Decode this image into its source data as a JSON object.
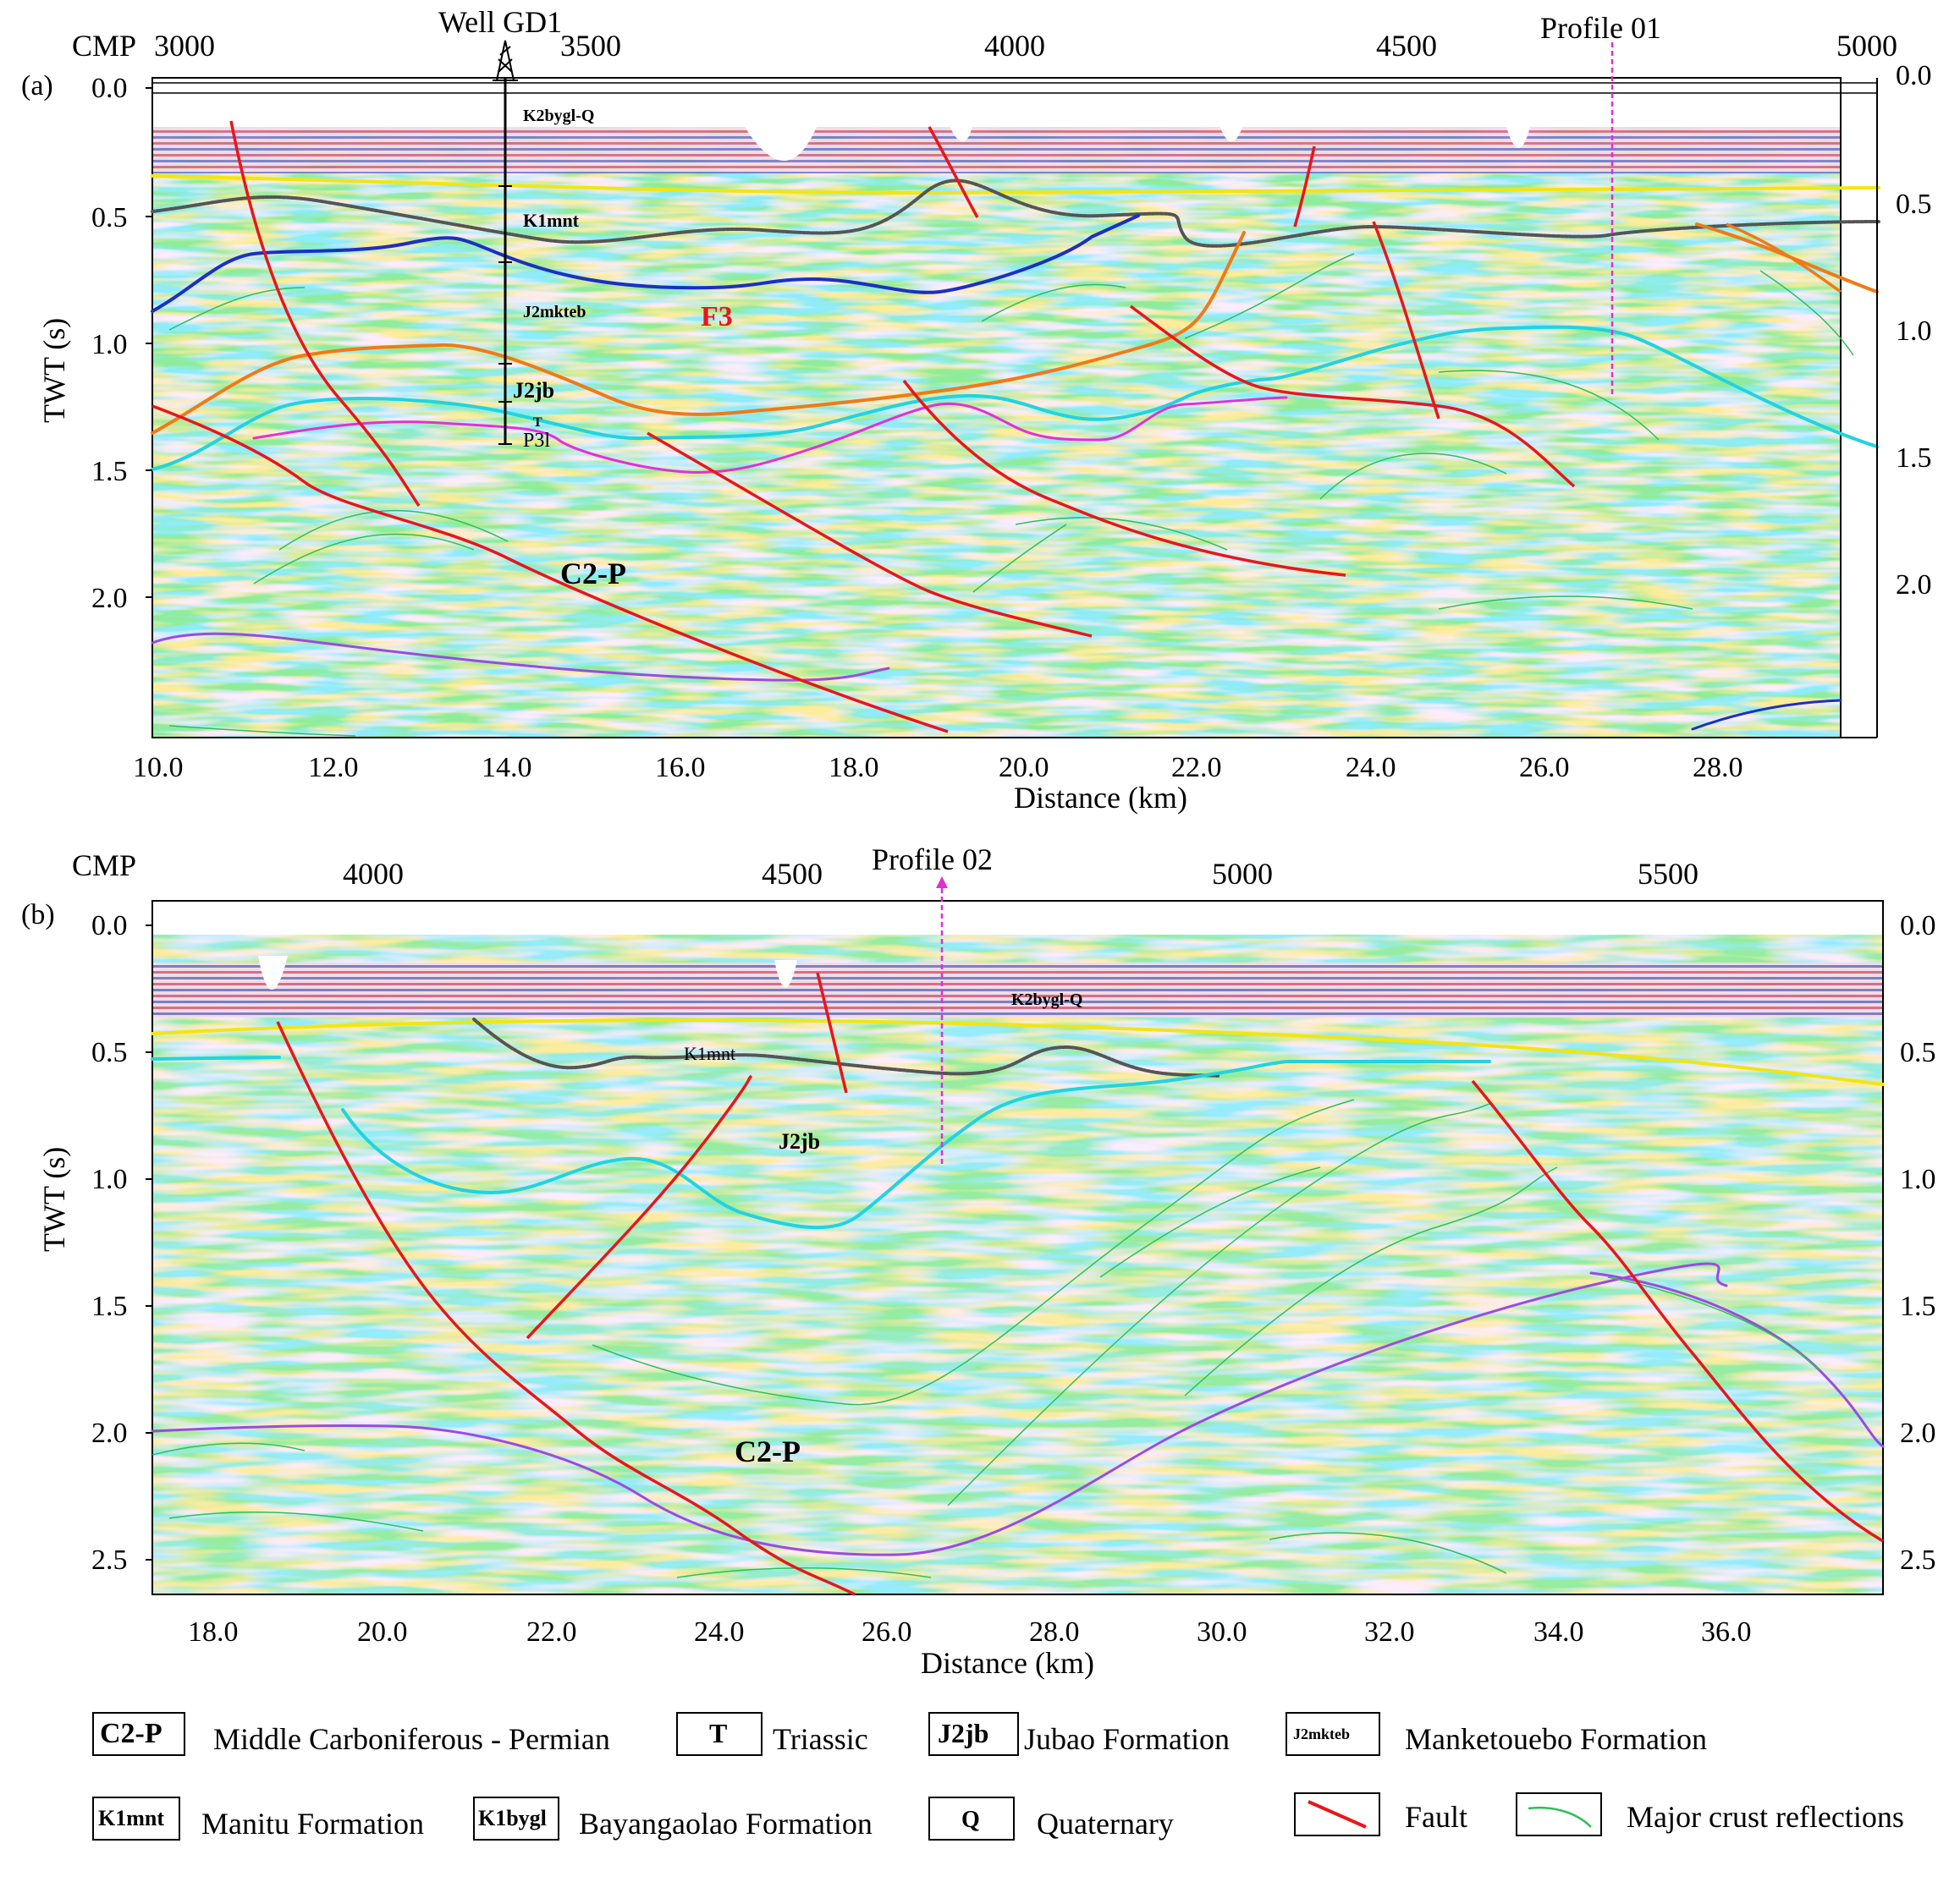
{
  "panel_a": {
    "tag": "(a)",
    "cmp_prefix": "CMP",
    "cmp_ticks": [
      "3000",
      "3500",
      "4000",
      "4500",
      "5000"
    ],
    "well_label": "Well GD1",
    "profile_label": "Profile 01",
    "y_ticks": [
      "0.0",
      "0.5",
      "1.0",
      "1.5",
      "2.0"
    ],
    "y_title": "TWT (s)",
    "x_ticks": [
      "10.0",
      "12.0",
      "14.0",
      "16.0",
      "18.0",
      "20.0",
      "22.0",
      "24.0",
      "26.0",
      "28.0"
    ],
    "x_title": "Distance (km)",
    "units": {
      "k2bygl_q": "K2bygl-Q",
      "k1mnt": "K1mnt",
      "j2mkteb": "J2mkteb",
      "j2jb": "J2jb",
      "t": "T",
      "p3l": "P3l",
      "c2p": "C2-P",
      "f3": "F3"
    }
  },
  "panel_b": {
    "tag": "(b)",
    "cmp_prefix": "CMP",
    "cmp_ticks": [
      "4000",
      "4500",
      "5000",
      "5500"
    ],
    "profile_label": "Profile 02",
    "y_ticks": [
      "0.0",
      "0.5",
      "1.0",
      "1.5",
      "2.0",
      "2.5"
    ],
    "y_title": "TWT (s)",
    "x_ticks": [
      "18.0",
      "20.0",
      "22.0",
      "24.0",
      "26.0",
      "28.0",
      "30.0",
      "32.0",
      "34.0",
      "36.0"
    ],
    "x_title": "Distance (km)",
    "units": {
      "k2bygl_q": "K2bygl-Q",
      "k1mnt": "K1mnt",
      "j2jb": "J2jb",
      "c2p": "C2-P"
    }
  },
  "legend": {
    "items": [
      {
        "code": "C2-P",
        "label": "Middle Carboniferous - Permian"
      },
      {
        "code": "T",
        "label": "Triassic"
      },
      {
        "code": "J2jb",
        "label": "Jubao Formation"
      },
      {
        "code": "J2mkteb",
        "label": "Manketouebo Formation"
      },
      {
        "code": "K1mnt",
        "label": "Manitu Formation"
      },
      {
        "code": "K1bygl",
        "label": "Bayangaolao Formation"
      },
      {
        "code": "Q",
        "label": "Quaternary"
      },
      {
        "code": "",
        "label": "Fault"
      },
      {
        "code": "",
        "label": "Major crust reflections"
      }
    ]
  },
  "colors": {
    "fault": "#e8161b",
    "crust_reflection": "#2fbf5a",
    "k2_base": "#f2e513",
    "k1_base": "#555555",
    "j2mkteb_base": "#1c2fc4",
    "j2jb_base": "#f07a17",
    "t_base": "#22d3e0",
    "p3l_base": "#e42fd8",
    "c2p_deep": "#9b4be0",
    "profile_marker": "#e02fd5",
    "seismic_red": "#d73a4a",
    "seismic_blue": "#3a43c8"
  }
}
